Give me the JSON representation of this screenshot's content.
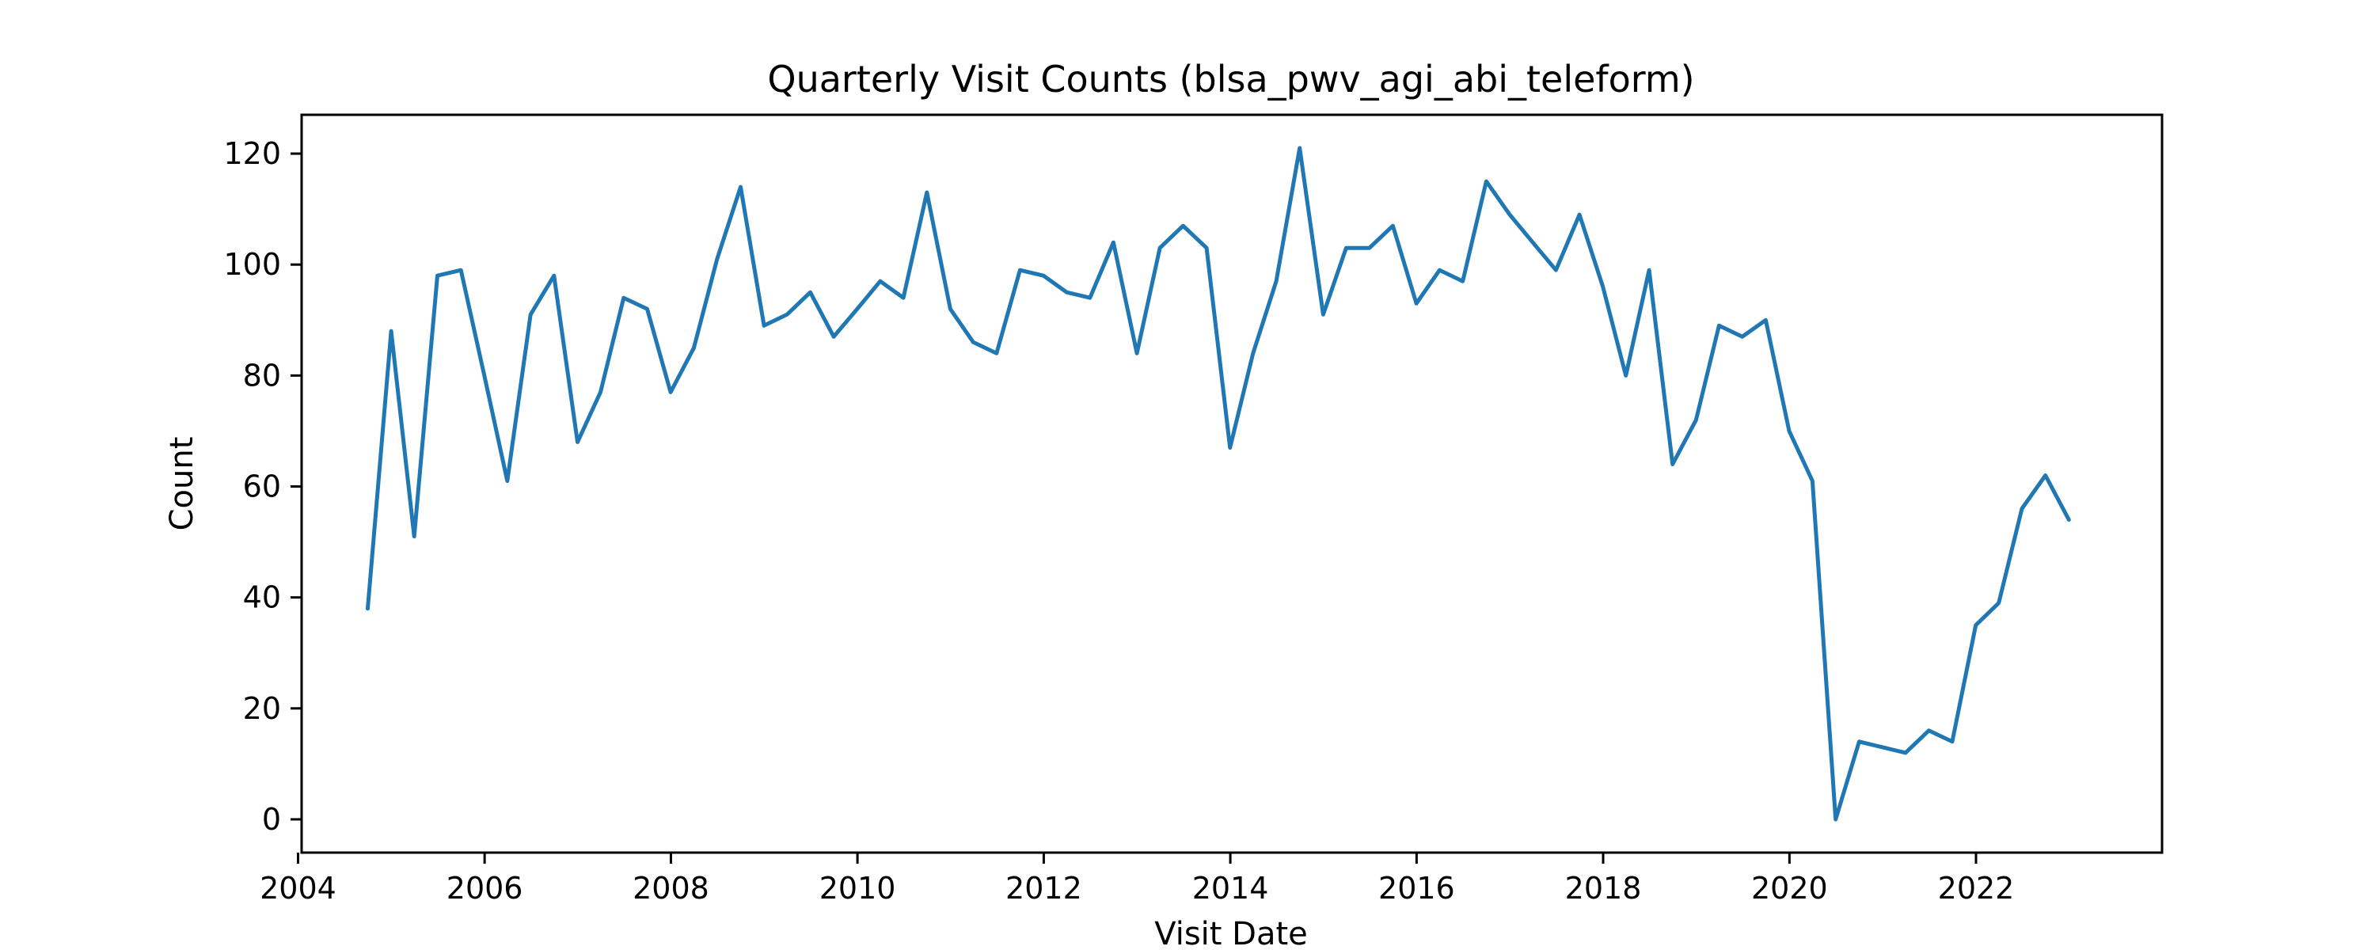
{
  "colors": {
    "series": "#1f77b4",
    "axes": "#000000",
    "background": "#ffffff"
  },
  "chart_data": {
    "type": "line",
    "title": "Quarterly Visit Counts (blsa_pwv_agi_abi_teleform)",
    "xlabel": "Visit Date",
    "ylabel": "Count",
    "x_axis_type": "date",
    "xlim": [
      "2004-01-15",
      "2023-12-31"
    ],
    "ylim": [
      -6,
      127
    ],
    "grid": false,
    "legend": "none",
    "xticks": [
      {
        "value": "2004-01-01",
        "label": "2004"
      },
      {
        "value": "2006-01-01",
        "label": "2006"
      },
      {
        "value": "2008-01-01",
        "label": "2008"
      },
      {
        "value": "2010-01-01",
        "label": "2010"
      },
      {
        "value": "2012-01-01",
        "label": "2012"
      },
      {
        "value": "2014-01-01",
        "label": "2014"
      },
      {
        "value": "2016-01-01",
        "label": "2016"
      },
      {
        "value": "2018-01-01",
        "label": "2018"
      },
      {
        "value": "2020-01-01",
        "label": "2020"
      },
      {
        "value": "2022-01-01",
        "label": "2022"
      }
    ],
    "yticks": [
      {
        "value": 0,
        "label": "0"
      },
      {
        "value": 20,
        "label": "20"
      },
      {
        "value": 40,
        "label": "40"
      },
      {
        "value": 60,
        "label": "60"
      },
      {
        "value": 80,
        "label": "80"
      },
      {
        "value": 100,
        "label": "100"
      },
      {
        "value": 120,
        "label": "120"
      }
    ],
    "series": [
      {
        "x": [
          "2004-09-30",
          "2004-12-31",
          "2005-03-31",
          "2005-06-30",
          "2005-09-30",
          "2005-12-31",
          "2006-03-31",
          "2006-06-30",
          "2006-09-30",
          "2006-12-31",
          "2007-03-31",
          "2007-06-30",
          "2007-09-30",
          "2007-12-31",
          "2008-03-31",
          "2008-06-30",
          "2008-09-30",
          "2008-12-31",
          "2009-03-31",
          "2009-06-30",
          "2009-09-30",
          "2009-12-31",
          "2010-03-31",
          "2010-06-30",
          "2010-09-30",
          "2010-12-31",
          "2011-03-31",
          "2011-06-30",
          "2011-09-30",
          "2011-12-31",
          "2012-03-31",
          "2012-06-30",
          "2012-09-30",
          "2012-12-31",
          "2013-03-31",
          "2013-06-30",
          "2013-09-30",
          "2013-12-31",
          "2014-03-31",
          "2014-06-30",
          "2014-09-30",
          "2014-12-31",
          "2015-03-31",
          "2015-06-30",
          "2015-09-30",
          "2015-12-31",
          "2016-03-31",
          "2016-06-30",
          "2016-09-30",
          "2016-12-31",
          "2017-03-31",
          "2017-06-30",
          "2017-09-30",
          "2017-12-31",
          "2018-03-31",
          "2018-06-30",
          "2018-09-30",
          "2018-12-31",
          "2019-03-31",
          "2019-06-30",
          "2019-09-30",
          "2019-12-31",
          "2020-03-31",
          "2020-06-30",
          "2020-09-30",
          "2020-12-31",
          "2021-03-31",
          "2021-06-30",
          "2021-09-30",
          "2021-12-31",
          "2022-03-31",
          "2022-06-30",
          "2022-09-30",
          "2022-12-31"
        ],
        "y": [
          38,
          88,
          51,
          98,
          99,
          80,
          61,
          91,
          98,
          68,
          77,
          94,
          92,
          77,
          85,
          101,
          114,
          89,
          91,
          95,
          87,
          92,
          97,
          94,
          113,
          92,
          86,
          84,
          99,
          98,
          95,
          94,
          104,
          84,
          103,
          107,
          103,
          67,
          84,
          97,
          121,
          91,
          103,
          103,
          107,
          93,
          99,
          97,
          115,
          109,
          104,
          99,
          109,
          96,
          80,
          99,
          64,
          72,
          89,
          87,
          90,
          70,
          61,
          0,
          14,
          13,
          12,
          16,
          14,
          35,
          39,
          56,
          62,
          54
        ]
      }
    ]
  }
}
